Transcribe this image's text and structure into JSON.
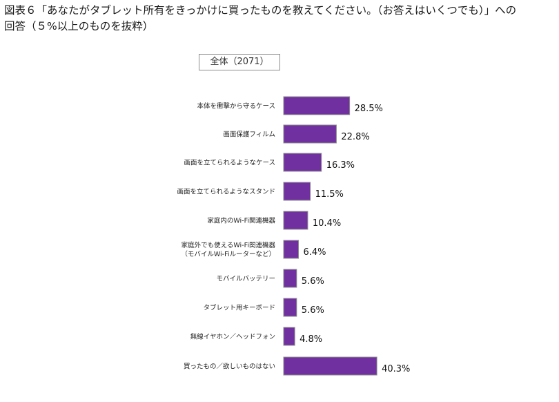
{
  "page_title": {
    "line1": "図表６「あなたがタブレット所有をきっかけに買ったものを教えてください。（お答えはいくつでも）」への",
    "line2": "回答（５%以上のものを抜粋）"
  },
  "legend": {
    "label": "全体（2071）"
  },
  "colors": {
    "bar_fill": "#7030a0",
    "bar_stroke": "#8c8c8c"
  },
  "chart_data": {
    "type": "bar",
    "orientation": "horizontal",
    "series": [
      {
        "name": "全体（2071）",
        "values": [
          28.5,
          22.8,
          16.3,
          11.5,
          10.4,
          6.4,
          5.6,
          5.6,
          4.8,
          40.3
        ]
      }
    ],
    "categories": [
      [
        "本体を衝撃から守るケース"
      ],
      [
        "画面保護フィルム"
      ],
      [
        "画面を立てられるようなケース"
      ],
      [
        "画面を立てられるようなスタンド"
      ],
      [
        "家庭内のWi-Fi関連機器"
      ],
      [
        "家庭外でも使えるWi-Fi関連機器",
        "（モバイルWi-Fiルーターなど）"
      ],
      [
        "モバイルバッテリー"
      ],
      [
        "タブレット用キーボード"
      ],
      [
        "無線イヤホン／ヘッドフォン"
      ],
      [
        "買ったもの／欲しいものはない"
      ]
    ],
    "value_labels": [
      "28.5%",
      "22.8%",
      "16.3%",
      "11.5%",
      "10.4%",
      "6.4%",
      "5.6%",
      "5.6%",
      "4.8%",
      "40.3%"
    ],
    "value_unit": "%",
    "axis_visible": false,
    "grid": false,
    "legend_position": "top-center"
  }
}
